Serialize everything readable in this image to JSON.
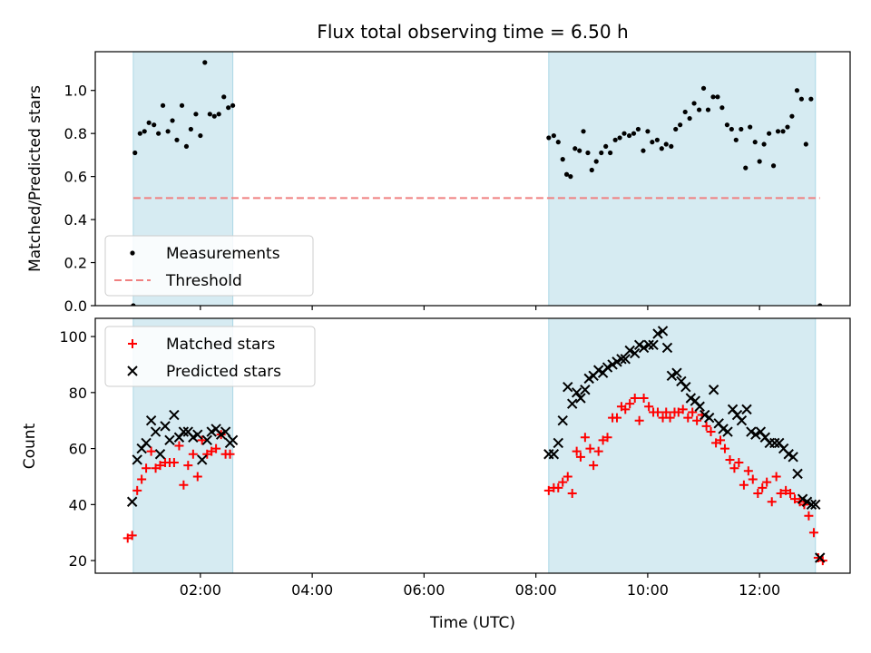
{
  "title": "Flux total observing time = 6.50 h",
  "chart_data": [
    {
      "type": "scatter",
      "title": "Flux total observing time = 6.50 h",
      "xlabel": "",
      "ylabel": "Matched/Predicted stars",
      "x_unit": "hours (UTC)",
      "xlim": [
        0.12,
        13.62
      ],
      "ylim": [
        0.0,
        1.18
      ],
      "yticks": [
        0.0,
        0.2,
        0.4,
        0.6,
        0.8,
        1.0
      ],
      "ytick_labels": [
        "0.0",
        "0.2",
        "0.4",
        "0.6",
        "0.8",
        "1.0"
      ],
      "xticks": [
        2,
        4,
        6,
        8,
        10,
        12
      ],
      "shaded_intervals": [
        [
          0.8,
          2.58
        ],
        [
          8.23,
          13.0
        ]
      ],
      "legend_position": "lower-left",
      "series": [
        {
          "name": "Measurements",
          "marker": "dot",
          "color": "#000000",
          "points": [
            [
              0.8,
              0.0
            ],
            [
              0.83,
              0.71
            ],
            [
              0.92,
              0.8
            ],
            [
              1.0,
              0.81
            ],
            [
              1.08,
              0.85
            ],
            [
              1.17,
              0.84
            ],
            [
              1.25,
              0.8
            ],
            [
              1.33,
              0.93
            ],
            [
              1.42,
              0.81
            ],
            [
              1.5,
              0.86
            ],
            [
              1.58,
              0.77
            ],
            [
              1.67,
              0.93
            ],
            [
              1.75,
              0.74
            ],
            [
              1.83,
              0.82
            ],
            [
              1.92,
              0.89
            ],
            [
              2.0,
              0.79
            ],
            [
              2.08,
              1.13
            ],
            [
              2.17,
              0.89
            ],
            [
              2.25,
              0.88
            ],
            [
              2.33,
              0.89
            ],
            [
              2.42,
              0.97
            ],
            [
              2.5,
              0.92
            ],
            [
              2.58,
              0.93
            ],
            [
              8.23,
              0.78
            ],
            [
              8.32,
              0.79
            ],
            [
              8.4,
              0.76
            ],
            [
              8.48,
              0.68
            ],
            [
              8.55,
              0.61
            ],
            [
              8.62,
              0.6
            ],
            [
              8.7,
              0.73
            ],
            [
              8.78,
              0.72
            ],
            [
              8.85,
              0.81
            ],
            [
              8.93,
              0.71
            ],
            [
              9.0,
              0.63
            ],
            [
              9.08,
              0.67
            ],
            [
              9.17,
              0.71
            ],
            [
              9.25,
              0.74
            ],
            [
              9.33,
              0.71
            ],
            [
              9.42,
              0.77
            ],
            [
              9.5,
              0.78
            ],
            [
              9.58,
              0.8
            ],
            [
              9.67,
              0.79
            ],
            [
              9.75,
              0.8
            ],
            [
              9.83,
              0.82
            ],
            [
              9.92,
              0.72
            ],
            [
              10.0,
              0.81
            ],
            [
              10.08,
              0.76
            ],
            [
              10.17,
              0.77
            ],
            [
              10.25,
              0.73
            ],
            [
              10.33,
              0.75
            ],
            [
              10.42,
              0.74
            ],
            [
              10.5,
              0.82
            ],
            [
              10.58,
              0.84
            ],
            [
              10.67,
              0.9
            ],
            [
              10.75,
              0.87
            ],
            [
              10.83,
              0.94
            ],
            [
              10.92,
              0.91
            ],
            [
              11.0,
              1.01
            ],
            [
              11.08,
              0.91
            ],
            [
              11.17,
              0.97
            ],
            [
              11.25,
              0.97
            ],
            [
              11.33,
              0.92
            ],
            [
              11.42,
              0.84
            ],
            [
              11.5,
              0.82
            ],
            [
              11.58,
              0.77
            ],
            [
              11.67,
              0.82
            ],
            [
              11.75,
              0.64
            ],
            [
              11.83,
              0.83
            ],
            [
              11.92,
              0.76
            ],
            [
              12.0,
              0.67
            ],
            [
              12.08,
              0.75
            ],
            [
              12.17,
              0.8
            ],
            [
              12.25,
              0.65
            ],
            [
              12.33,
              0.81
            ],
            [
              12.42,
              0.81
            ],
            [
              12.5,
              0.83
            ],
            [
              12.58,
              0.88
            ],
            [
              12.67,
              1.0
            ],
            [
              12.75,
              0.96
            ],
            [
              12.83,
              0.75
            ],
            [
              12.92,
              0.96
            ],
            [
              13.08,
              0.0
            ]
          ]
        },
        {
          "name": "Threshold",
          "line_style": "dashed",
          "color": "#f08080",
          "points": [
            [
              0.8,
              0.5
            ],
            [
              13.08,
              0.5
            ]
          ]
        }
      ]
    },
    {
      "type": "scatter",
      "xlabel": "Time (UTC)",
      "ylabel": "Count",
      "x_unit": "hours (UTC)",
      "xlim": [
        0.12,
        13.62
      ],
      "ylim": [
        15.5,
        106.5
      ],
      "yticks": [
        20,
        40,
        60,
        80,
        100
      ],
      "ytick_labels": [
        "20",
        "40",
        "60",
        "80",
        "100"
      ],
      "xticks": [
        2,
        4,
        6,
        8,
        10,
        12
      ],
      "xtick_labels": [
        "02:00",
        "04:00",
        "06:00",
        "08:00",
        "10:00",
        "12:00"
      ],
      "shaded_intervals": [
        [
          0.8,
          2.58
        ],
        [
          8.23,
          13.0
        ]
      ],
      "legend_position": "upper-left",
      "series": [
        {
          "name": "Matched stars",
          "marker": "plus",
          "color": "#ff0000",
          "points": [
            [
              0.7,
              28
            ],
            [
              0.78,
              29
            ],
            [
              0.87,
              45
            ],
            [
              0.95,
              49
            ],
            [
              1.03,
              53
            ],
            [
              1.12,
              59
            ],
            [
              1.2,
              53
            ],
            [
              1.28,
              54
            ],
            [
              1.37,
              55
            ],
            [
              1.45,
              55
            ],
            [
              1.53,
              55
            ],
            [
              1.62,
              61
            ],
            [
              1.7,
              47
            ],
            [
              1.78,
              54
            ],
            [
              1.87,
              58
            ],
            [
              1.95,
              50
            ],
            [
              2.03,
              63
            ],
            [
              2.12,
              58
            ],
            [
              2.2,
              59
            ],
            [
              2.28,
              60
            ],
            [
              2.37,
              65
            ],
            [
              2.45,
              58
            ],
            [
              2.53,
              58
            ],
            [
              8.23,
              45
            ],
            [
              8.32,
              46
            ],
            [
              8.4,
              46
            ],
            [
              8.48,
              48
            ],
            [
              8.57,
              50
            ],
            [
              8.65,
              44
            ],
            [
              8.73,
              59
            ],
            [
              8.8,
              57
            ],
            [
              8.88,
              64
            ],
            [
              8.97,
              60
            ],
            [
              9.03,
              54
            ],
            [
              9.12,
              59
            ],
            [
              9.2,
              63
            ],
            [
              9.28,
              64
            ],
            [
              9.37,
              71
            ],
            [
              9.45,
              71
            ],
            [
              9.53,
              75
            ],
            [
              9.6,
              74
            ],
            [
              9.68,
              76
            ],
            [
              9.77,
              78
            ],
            [
              9.85,
              70
            ],
            [
              9.93,
              78
            ],
            [
              10.02,
              75
            ],
            [
              10.1,
              73
            ],
            [
              10.18,
              73
            ],
            [
              10.27,
              71
            ],
            [
              10.33,
              73
            ],
            [
              10.4,
              71
            ],
            [
              10.48,
              73
            ],
            [
              10.55,
              73
            ],
            [
              10.63,
              74
            ],
            [
              10.72,
              71
            ],
            [
              10.8,
              73
            ],
            [
              10.88,
              70
            ],
            [
              10.97,
              72
            ],
            [
              11.05,
              68
            ],
            [
              11.13,
              66
            ],
            [
              11.22,
              62
            ],
            [
              11.3,
              63
            ],
            [
              11.38,
              60
            ],
            [
              11.47,
              56
            ],
            [
              11.55,
              53
            ],
            [
              11.63,
              55
            ],
            [
              11.72,
              47
            ],
            [
              11.8,
              52
            ],
            [
              11.88,
              49
            ],
            [
              11.97,
              44
            ],
            [
              12.05,
              46
            ],
            [
              12.13,
              48
            ],
            [
              12.22,
              41
            ],
            [
              12.3,
              50
            ],
            [
              12.38,
              44
            ],
            [
              12.47,
              45
            ],
            [
              12.55,
              44
            ],
            [
              12.63,
              42
            ],
            [
              12.72,
              41
            ],
            [
              12.8,
              40
            ],
            [
              12.88,
              36
            ],
            [
              12.97,
              30
            ],
            [
              13.05,
              21
            ],
            [
              13.13,
              20
            ]
          ]
        },
        {
          "name": "Predicted stars",
          "marker": "x",
          "color": "#000000",
          "points": [
            [
              0.78,
              41
            ],
            [
              0.87,
              56
            ],
            [
              0.95,
              60
            ],
            [
              1.03,
              62
            ],
            [
              1.12,
              70
            ],
            [
              1.2,
              66
            ],
            [
              1.28,
              58
            ],
            [
              1.37,
              68
            ],
            [
              1.45,
              63
            ],
            [
              1.53,
              72
            ],
            [
              1.62,
              64
            ],
            [
              1.7,
              66
            ],
            [
              1.78,
              66
            ],
            [
              1.87,
              64
            ],
            [
              1.95,
              65
            ],
            [
              2.03,
              56
            ],
            [
              2.12,
              63
            ],
            [
              2.2,
              66
            ],
            [
              2.28,
              67
            ],
            [
              2.37,
              65
            ],
            [
              2.45,
              66
            ],
            [
              2.53,
              62
            ],
            [
              2.58,
              63
            ],
            [
              8.23,
              58
            ],
            [
              8.32,
              58
            ],
            [
              8.4,
              62
            ],
            [
              8.48,
              70
            ],
            [
              8.57,
              82
            ],
            [
              8.65,
              76
            ],
            [
              8.73,
              80
            ],
            [
              8.8,
              78
            ],
            [
              8.88,
              81
            ],
            [
              8.95,
              85
            ],
            [
              9.03,
              86
            ],
            [
              9.12,
              88
            ],
            [
              9.2,
              87
            ],
            [
              9.28,
              89
            ],
            [
              9.37,
              90
            ],
            [
              9.45,
              91
            ],
            [
              9.53,
              92
            ],
            [
              9.6,
              92
            ],
            [
              9.68,
              95
            ],
            [
              9.77,
              94
            ],
            [
              9.85,
              97
            ],
            [
              9.93,
              96
            ],
            [
              10.02,
              97
            ],
            [
              10.1,
              97
            ],
            [
              10.18,
              101
            ],
            [
              10.27,
              102
            ],
            [
              10.35,
              96
            ],
            [
              10.43,
              86
            ],
            [
              10.52,
              87
            ],
            [
              10.6,
              84
            ],
            [
              10.68,
              82
            ],
            [
              10.77,
              78
            ],
            [
              10.85,
              77
            ],
            [
              10.93,
              75
            ],
            [
              11.02,
              72
            ],
            [
              11.1,
              71
            ],
            [
              11.18,
              81
            ],
            [
              11.27,
              69
            ],
            [
              11.35,
              67
            ],
            [
              11.43,
              66
            ],
            [
              11.52,
              74
            ],
            [
              11.6,
              72
            ],
            [
              11.68,
              70
            ],
            [
              11.77,
              74
            ],
            [
              11.85,
              66
            ],
            [
              11.93,
              65
            ],
            [
              12.02,
              66
            ],
            [
              12.1,
              64
            ],
            [
              12.18,
              62
            ],
            [
              12.27,
              62
            ],
            [
              12.35,
              62
            ],
            [
              12.43,
              60
            ],
            [
              12.52,
              58
            ],
            [
              12.6,
              57
            ],
            [
              12.68,
              51
            ],
            [
              12.77,
              42
            ],
            [
              12.85,
              41
            ],
            [
              12.93,
              40
            ],
            [
              13.0,
              40
            ],
            [
              13.08,
              21
            ]
          ]
        }
      ]
    }
  ]
}
